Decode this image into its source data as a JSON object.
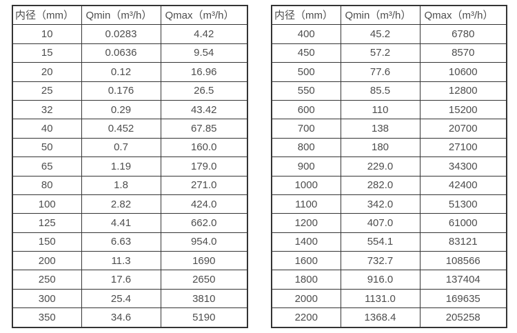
{
  "page": {
    "background_color": "#ffffff",
    "border_color": "#333333",
    "text_color": "#4d4d4d"
  },
  "tables": [
    {
      "name": "flow-table-small-diameters",
      "headers": [
        "内径（mm）",
        "Qmin（m³/h）",
        "Qmax（m³/h）"
      ],
      "rows": [
        [
          "10",
          "0.0283",
          "4.42"
        ],
        [
          "15",
          "0.0636",
          "9.54"
        ],
        [
          "20",
          "0.12",
          "16.96"
        ],
        [
          "25",
          "0.176",
          "26.5"
        ],
        [
          "32",
          "0.29",
          "43.42"
        ],
        [
          "40",
          "0.452",
          "67.85"
        ],
        [
          "50",
          "0.7",
          "160.0"
        ],
        [
          "65",
          "1.19",
          "179.0"
        ],
        [
          "80",
          "1.8",
          "271.0"
        ],
        [
          "100",
          "2.82",
          "424.0"
        ],
        [
          "125",
          "4.41",
          "662.0"
        ],
        [
          "150",
          "6.63",
          "954.0"
        ],
        [
          "200",
          "11.3",
          "1690"
        ],
        [
          "250",
          "17.6",
          "2650"
        ],
        [
          "300",
          "25.4",
          "3810"
        ],
        [
          "350",
          "34.6",
          "5190"
        ]
      ]
    },
    {
      "name": "flow-table-large-diameters",
      "headers": [
        "内径（mm）",
        "Qmin（m³/h）",
        "Qmax（m³/h）"
      ],
      "rows": [
        [
          "400",
          "45.2",
          "6780"
        ],
        [
          "450",
          "57.2",
          "8570"
        ],
        [
          "500",
          "77.6",
          "10600"
        ],
        [
          "550",
          "85.5",
          "12800"
        ],
        [
          "600",
          "110",
          "15200"
        ],
        [
          "700",
          "138",
          "20700"
        ],
        [
          "800",
          "180",
          "27100"
        ],
        [
          "900",
          "229.0",
          "34300"
        ],
        [
          "1000",
          "282.0",
          "42400"
        ],
        [
          "1100",
          "342.0",
          "51300"
        ],
        [
          "1200",
          "407.0",
          "61000"
        ],
        [
          "1400",
          "554.1",
          "83121"
        ],
        [
          "1600",
          "732.7",
          "108566"
        ],
        [
          "1800",
          "916.0",
          "137404"
        ],
        [
          "2000",
          "1131.0",
          "169635"
        ],
        [
          "2200",
          "1368.4",
          "205258"
        ]
      ]
    }
  ]
}
